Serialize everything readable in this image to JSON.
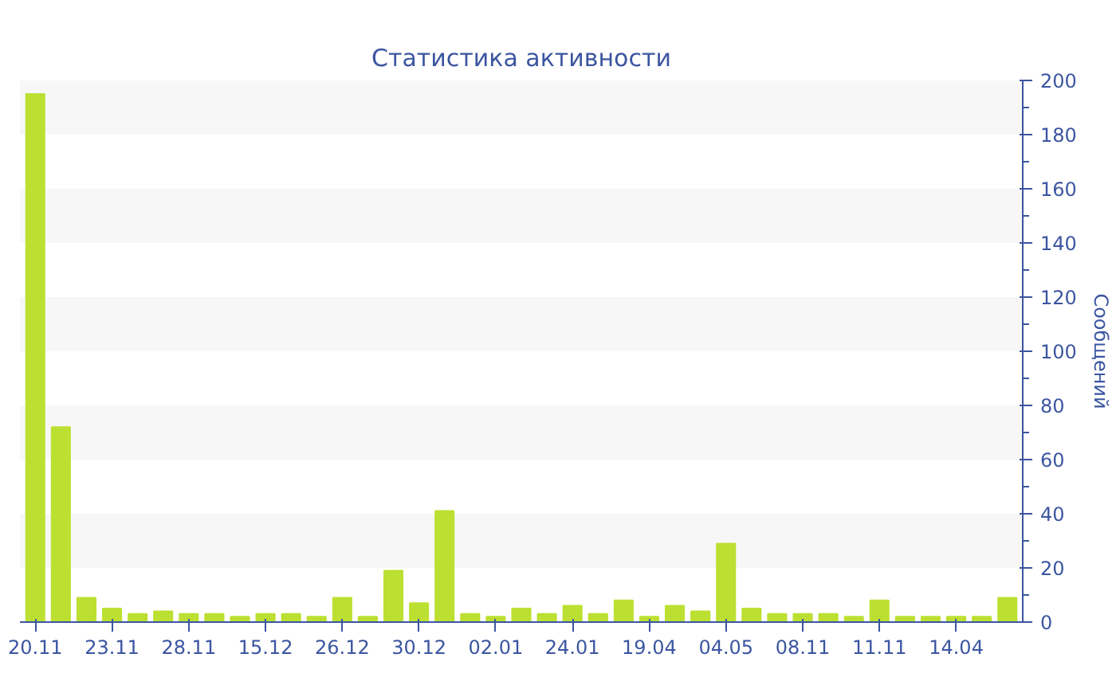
{
  "chart_data": {
    "type": "bar",
    "title": "Статистика активности",
    "ylabel": "Сообщений",
    "categories": [
      "20.11",
      null,
      null,
      "23.11",
      null,
      null,
      "28.11",
      null,
      null,
      "15.12",
      null,
      null,
      "26.12",
      null,
      null,
      "30.12",
      null,
      null,
      "02.01",
      null,
      null,
      "24.01",
      null,
      null,
      "19.04",
      null,
      null,
      "04.05",
      null,
      null,
      "08.11",
      null,
      null,
      "11.11",
      null,
      null,
      "14.04",
      null,
      null
    ],
    "values": [
      195,
      72,
      9,
      5,
      3,
      4,
      3,
      3,
      2,
      3,
      3,
      2,
      9,
      2,
      19,
      7,
      41,
      3,
      2,
      5,
      3,
      6,
      3,
      8,
      2,
      6,
      4,
      29,
      5,
      3,
      3,
      3,
      2,
      8,
      2,
      2,
      2,
      2,
      9
    ],
    "color": "#bce032",
    "ylim": [
      0,
      200
    ],
    "yticks": [
      0,
      20,
      40,
      60,
      80,
      100,
      120,
      140,
      160,
      180,
      200
    ],
    "bands": [
      {
        "axis": "y",
        "from": 20,
        "to": 40,
        "color": "#f7f7f7"
      },
      {
        "axis": "y",
        "from": 60,
        "to": 80,
        "color": "#f7f7f7"
      },
      {
        "axis": "y",
        "from": 100,
        "to": 120,
        "color": "#f7f7f7"
      },
      {
        "axis": "y",
        "from": 140,
        "to": 160,
        "color": "#f7f7f7"
      },
      {
        "axis": "y",
        "from": 180,
        "to": 200,
        "color": "#f7f7f7"
      }
    ]
  }
}
